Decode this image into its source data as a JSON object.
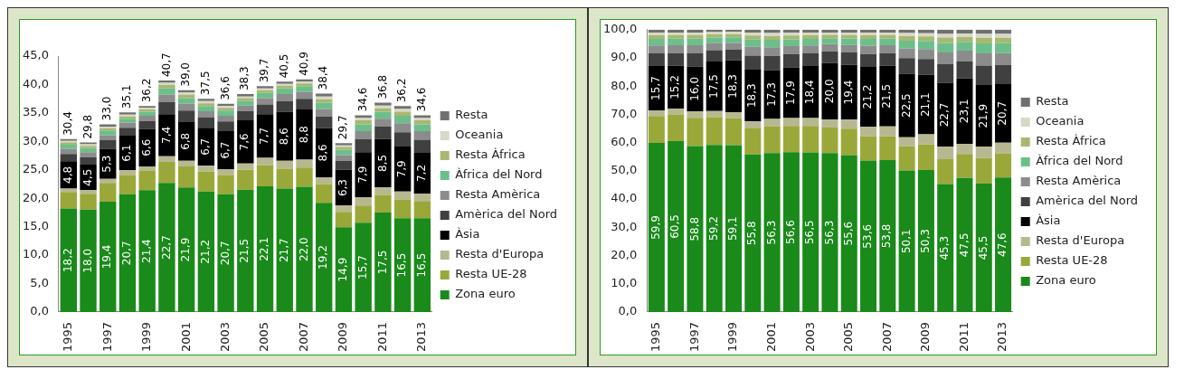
{
  "chart_data": [
    {
      "type": "bar",
      "stacked": true,
      "legend": "right",
      "categories": [
        "1995",
        null,
        "1997",
        null,
        "1999",
        null,
        "2001",
        null,
        "2003",
        null,
        "2005",
        null,
        "2007",
        null,
        "2009",
        null,
        "2011",
        null,
        "2013"
      ],
      "ylim": [
        0,
        45
      ],
      "yticks": [
        {
          "value": 0,
          "label": "0,0"
        },
        {
          "value": 5,
          "label": "5,0"
        },
        {
          "value": 10,
          "label": "10,0"
        },
        {
          "value": 15,
          "label": "15,0"
        },
        {
          "value": 20,
          "label": "20,0"
        },
        {
          "value": 25,
          "label": "25,0"
        },
        {
          "value": 30,
          "label": "30,0"
        },
        {
          "value": 35,
          "label": "35,0"
        },
        {
          "value": 40,
          "label": "40,0"
        },
        {
          "value": 45,
          "label": "45,0"
        }
      ],
      "totals": [
        "30,4",
        "29,8",
        "33,0",
        "35,1",
        "36,2",
        "40,7",
        "39,0",
        "37,5",
        "36,6",
        "38,3",
        "39,7",
        "40,5",
        "40,9",
        "38,4",
        "29,7",
        "34,6",
        "36,8",
        "36,2",
        "34,6"
      ],
      "series": [
        {
          "name": "Zona euro",
          "color": "#1a8a1a",
          "values": [
            18.2,
            18.0,
            19.4,
            20.7,
            21.4,
            22.7,
            21.9,
            21.2,
            20.7,
            21.5,
            22.1,
            21.7,
            22.0,
            19.2,
            14.9,
            15.7,
            17.5,
            16.5,
            16.5
          ],
          "value_labels": [
            "18,2",
            "18,0",
            "19,4",
            "20,7",
            "21,4",
            "22,7",
            "21,9",
            "21,2",
            "20,7",
            "21,5",
            "22,1",
            "21,7",
            "22,0",
            "19,2",
            "14,9",
            "15,7",
            "17,5",
            "16,5",
            "16,5"
          ]
        },
        {
          "name": "Resta UE-28",
          "color": "#9aa83a",
          "values": [
            2.9,
            2.8,
            3.3,
            3.4,
            3.4,
            3.7,
            3.7,
            3.5,
            3.4,
            3.5,
            3.7,
            3.5,
            3.4,
            3.3,
            2.7,
            3.0,
            3.1,
            3.3,
            3.0
          ]
        },
        {
          "name": "Resta d'Europa",
          "color": "#b8b890",
          "values": [
            0.6,
            0.6,
            0.7,
            0.8,
            0.8,
            1.0,
            1.0,
            1.0,
            1.0,
            1.1,
            1.3,
            1.4,
            1.4,
            1.2,
            1.1,
            1.5,
            1.3,
            1.4,
            1.3
          ]
        },
        {
          "name": "Àsia",
          "color": "#000000",
          "values": [
            4.8,
            4.5,
            5.3,
            6.1,
            6.6,
            7.4,
            6.8,
            6.7,
            6.7,
            7.6,
            7.7,
            8.6,
            8.8,
            8.6,
            6.3,
            7.9,
            8.5,
            7.9,
            7.2
          ],
          "value_labels": [
            "4,8",
            "4,5",
            "5,3",
            "6,1",
            "6,6",
            "7,4",
            "6,8",
            "6,7",
            "6,7",
            "7,6",
            "7,7",
            "8,6",
            "8,8",
            "8,6",
            "6,3",
            "7,9",
            "8,5",
            "7,9",
            "7,2"
          ]
        },
        {
          "name": "Amèrica del Nord",
          "color": "#404040",
          "values": [
            1.3,
            1.3,
            1.5,
            1.4,
            1.4,
            2.1,
            2.0,
            1.8,
            1.7,
            1.6,
            1.7,
            1.9,
            1.9,
            2.1,
            1.6,
            2.3,
            2.2,
            2.5,
            2.3
          ]
        },
        {
          "name": "Resta Amèrica",
          "color": "#8c8c8c",
          "values": [
            0.9,
            0.9,
            0.9,
            0.9,
            0.9,
            1.3,
            1.2,
            1.1,
            1.0,
            1.0,
            1.1,
            1.2,
            1.2,
            1.3,
            1.0,
            1.4,
            1.4,
            1.6,
            1.5
          ]
        },
        {
          "name": "Àfrica del Nord",
          "color": "#6cbf8a",
          "values": [
            0.7,
            0.7,
            0.8,
            0.7,
            0.7,
            1.1,
            1.0,
            0.9,
            0.9,
            0.8,
            0.9,
            1.0,
            1.0,
            1.1,
            0.9,
            1.2,
            1.2,
            1.3,
            1.2
          ]
        },
        {
          "name": "Resta Àfrica",
          "color": "#a8b870",
          "values": [
            0.4,
            0.4,
            0.4,
            0.4,
            0.4,
            0.6,
            0.6,
            0.5,
            0.5,
            0.5,
            0.5,
            0.5,
            0.5,
            0.6,
            0.5,
            0.7,
            0.6,
            0.7,
            0.7
          ]
        },
        {
          "name": "Oceania",
          "color": "#d8d8c8",
          "values": [
            0.3,
            0.3,
            0.3,
            0.3,
            0.3,
            0.4,
            0.4,
            0.4,
            0.3,
            0.3,
            0.3,
            0.3,
            0.3,
            0.5,
            0.3,
            0.4,
            0.5,
            0.5,
            0.4
          ]
        },
        {
          "name": "Resta",
          "color": "#707070",
          "values": [
            0.3,
            0.3,
            0.4,
            0.4,
            0.3,
            0.4,
            0.4,
            0.4,
            0.4,
            0.4,
            0.4,
            0.4,
            0.4,
            0.5,
            0.4,
            0.5,
            0.5,
            0.5,
            0.5
          ]
        }
      ]
    },
    {
      "type": "bar",
      "stacked": true,
      "legend": "right",
      "categories": [
        "1995",
        null,
        "1997",
        null,
        "1999",
        null,
        "2001",
        null,
        "2003",
        null,
        "2005",
        null,
        "2007",
        null,
        "2009",
        null,
        "2011",
        null,
        "2013"
      ],
      "ylim": [
        0,
        100
      ],
      "yticks": [
        {
          "value": 0,
          "label": "0,0"
        },
        {
          "value": 10,
          "label": "10,0"
        },
        {
          "value": 20,
          "label": "20,0"
        },
        {
          "value": 30,
          "label": "30,0"
        },
        {
          "value": 40,
          "label": "40,0"
        },
        {
          "value": 50,
          "label": "50,0"
        },
        {
          "value": 60,
          "label": "60,0"
        },
        {
          "value": 70,
          "label": "70,0"
        },
        {
          "value": 80,
          "label": "80,0"
        },
        {
          "value": 90,
          "label": "90,0"
        },
        {
          "value": 100,
          "label": "100,0"
        }
      ],
      "series": [
        {
          "name": "Zona euro",
          "color": "#1a8a1a",
          "values": [
            59.9,
            60.5,
            58.8,
            59.2,
            59.1,
            55.8,
            56.3,
            56.6,
            56.5,
            56.3,
            55.6,
            53.6,
            53.8,
            50.1,
            50.3,
            45.3,
            47.5,
            45.5,
            47.6
          ],
          "value_labels": [
            "59,9",
            "60,5",
            "58,8",
            "59,2",
            "59,1",
            "55,8",
            "56,3",
            "56,6",
            "56,5",
            "56,3",
            "55,6",
            "53,6",
            "53,8",
            "50,1",
            "50,3",
            "45,3",
            "47,5",
            "45,5",
            "47,6"
          ]
        },
        {
          "name": "Resta UE-28",
          "color": "#9aa83a",
          "values": [
            9.5,
            9.5,
            10.0,
            9.8,
            9.5,
            9.2,
            9.5,
            9.3,
            9.4,
            9.0,
            9.3,
            8.6,
            8.4,
            8.6,
            9.0,
            8.8,
            8.5,
            9.0,
            8.6
          ]
        },
        {
          "name": "Resta d'Europa",
          "color": "#b8b890",
          "values": [
            2.0,
            2.0,
            2.2,
            2.2,
            2.2,
            2.5,
            2.6,
            2.8,
            2.8,
            2.9,
            3.2,
            3.4,
            3.5,
            3.2,
            3.6,
            4.4,
            3.6,
            4.0,
            3.8
          ]
        },
        {
          "name": "Àsia",
          "color": "#000000",
          "values": [
            15.7,
            15.2,
            16.0,
            17.5,
            18.3,
            18.3,
            17.3,
            17.9,
            18.4,
            20.0,
            19.4,
            21.2,
            21.5,
            22.5,
            21.1,
            22.7,
            23.1,
            21.9,
            20.7
          ],
          "value_labels": [
            "15,7",
            "15,2",
            "16,0",
            "17,5",
            "18,3",
            "18,3",
            "17,3",
            "17,9",
            "18,4",
            "20,0",
            "19,4",
            "21,2",
            "21,5",
            "22,5",
            "21,1",
            "22,7",
            "23,1",
            "21,9",
            "20,7"
          ]
        },
        {
          "name": "Amèrica del Nord",
          "color": "#404040",
          "values": [
            4.5,
            4.5,
            4.6,
            4.0,
            3.8,
            5.0,
            5.0,
            4.7,
            4.5,
            4.1,
            4.4,
            4.6,
            4.5,
            5.5,
            5.6,
            6.6,
            6.1,
            6.9,
            6.8
          ]
        },
        {
          "name": "Resta Amèrica",
          "color": "#8c8c8c",
          "values": [
            2.8,
            2.8,
            2.9,
            2.5,
            2.4,
            3.1,
            3.1,
            2.9,
            2.8,
            2.6,
            2.7,
            2.9,
            2.8,
            3.4,
            3.5,
            4.1,
            3.8,
            4.3,
            4.2
          ]
        },
        {
          "name": "Àfrica del Nord",
          "color": "#6cbf8a",
          "values": [
            2.3,
            2.3,
            2.3,
            2.0,
            2.0,
            2.6,
            2.6,
            2.4,
            2.3,
            2.1,
            2.3,
            2.4,
            2.3,
            2.8,
            2.9,
            3.4,
            3.1,
            3.5,
            3.5
          ]
        },
        {
          "name": "Resta Àfrica",
          "color": "#a8b870",
          "values": [
            1.3,
            1.3,
            1.3,
            1.1,
            1.1,
            1.4,
            1.4,
            1.3,
            1.3,
            1.2,
            1.2,
            1.3,
            1.3,
            1.6,
            1.6,
            1.9,
            1.7,
            2.0,
            1.9
          ]
        },
        {
          "name": "Oceania",
          "color": "#d8d8c8",
          "values": [
            0.9,
            0.9,
            0.9,
            0.8,
            0.8,
            1.0,
            1.0,
            1.0,
            0.9,
            0.8,
            0.9,
            0.9,
            0.9,
            1.1,
            1.1,
            1.3,
            1.2,
            1.4,
            1.4
          ]
        },
        {
          "name": "Resta",
          "color": "#707070",
          "values": [
            1.1,
            1.0,
            1.0,
            0.9,
            0.8,
            1.1,
            1.2,
            1.1,
            1.1,
            1.0,
            1.0,
            1.1,
            1.0,
            1.2,
            1.3,
            1.5,
            1.4,
            1.5,
            1.5
          ]
        }
      ]
    }
  ]
}
